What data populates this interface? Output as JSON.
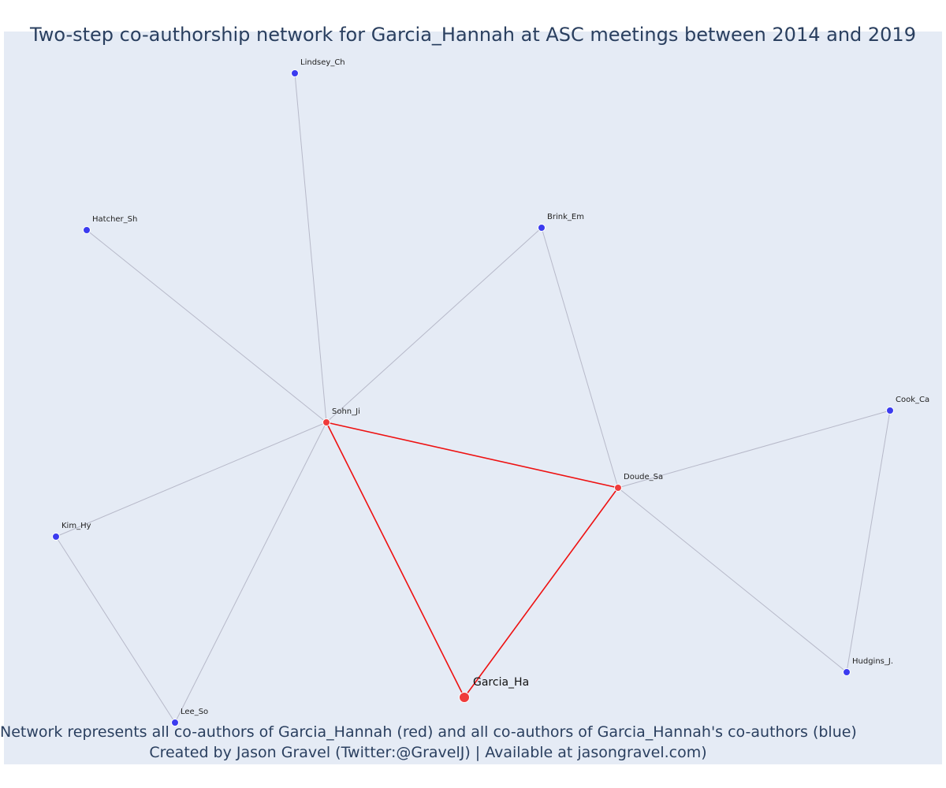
{
  "title": "Two-step co-authorship network for Garcia_Hannah at ASC meetings between 2014 and 2019",
  "caption_line1": "Network represents all co-authors of Garcia_Hannah (red) and all co-authors of Garcia_Hannah's co-authors (blue)",
  "caption_line2": "Created by Jason Gravel (Twitter:@GravelJ) | Available at jasongravel.com)",
  "colors": {
    "background": "#e5ebf5",
    "ego_node": "#ef3b3b",
    "coauthor_node": "#ef3b3b",
    "second_step_node": "#3b3bef",
    "ego_edge": "#ee1111",
    "other_edge": "#b7b9c9"
  },
  "nodes": [
    {
      "id": "Garcia_Ha",
      "group": "ego"
    },
    {
      "id": "Sohn_Ji",
      "group": "coauthor"
    },
    {
      "id": "Doude_Sa",
      "group": "coauthor"
    },
    {
      "id": "Lindsey_Ch",
      "group": "second_step"
    },
    {
      "id": "Hatcher_Sh",
      "group": "second_step"
    },
    {
      "id": "Brink_Em",
      "group": "second_step"
    },
    {
      "id": "Cook_Ca",
      "group": "second_step"
    },
    {
      "id": "Kim_Hy",
      "group": "second_step"
    },
    {
      "id": "Lee_So",
      "group": "second_step"
    },
    {
      "id": "Hudgins_J.",
      "group": "second_step"
    }
  ],
  "edges": [
    {
      "source": "Garcia_Ha",
      "target": "Sohn_Ji",
      "type": "ego"
    },
    {
      "source": "Garcia_Ha",
      "target": "Doude_Sa",
      "type": "ego"
    },
    {
      "source": "Sohn_Ji",
      "target": "Doude_Sa",
      "type": "ego"
    },
    {
      "source": "Sohn_Ji",
      "target": "Lindsey_Ch",
      "type": "other"
    },
    {
      "source": "Sohn_Ji",
      "target": "Hatcher_Sh",
      "type": "other"
    },
    {
      "source": "Sohn_Ji",
      "target": "Brink_Em",
      "type": "other"
    },
    {
      "source": "Sohn_Ji",
      "target": "Kim_Hy",
      "type": "other"
    },
    {
      "source": "Sohn_Ji",
      "target": "Lee_So",
      "type": "other"
    },
    {
      "source": "Doude_Sa",
      "target": "Brink_Em",
      "type": "other"
    },
    {
      "source": "Doude_Sa",
      "target": "Cook_Ca",
      "type": "other"
    },
    {
      "source": "Doude_Sa",
      "target": "Hudgins_J.",
      "type": "other"
    },
    {
      "source": "Kim_Hy",
      "target": "Lee_So",
      "type": "other"
    },
    {
      "source": "Cook_Ca",
      "target": "Hudgins_J.",
      "type": "other"
    }
  ]
}
